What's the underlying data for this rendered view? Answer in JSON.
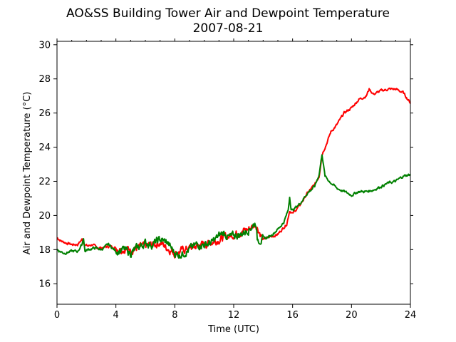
{
  "chart_data": {
    "type": "line",
    "title": "AO&SS Building Tower Air and Dewpoint Temperature",
    "subtitle": "2007-08-21",
    "xlabel": "Time (UTC)",
    "ylabel": "Air and Dewpoint Temperature (°C)",
    "xlim": [
      0,
      24
    ],
    "ylim": [
      14.8,
      30.2
    ],
    "xticks": [
      0,
      4,
      8,
      12,
      16,
      20,
      24
    ],
    "yticks": [
      16,
      18,
      20,
      22,
      24,
      26,
      28,
      30
    ],
    "grid": false,
    "legend": "none",
    "series": [
      {
        "color": "#ff0000",
        "x": [
          0,
          0.3,
          0.6,
          1.0,
          1.4,
          1.7,
          1.9,
          2.1,
          2.4,
          2.7,
          3.0,
          3.6,
          4.0,
          5.0,
          6.0,
          7.0,
          8.0,
          9.0,
          10.0,
          11.0,
          12.0,
          13.0,
          13.5,
          14.0,
          15.0,
          15.6,
          15.8,
          16.0,
          16.5,
          17.0,
          17.5,
          17.8,
          18.0,
          18.3,
          18.6,
          19.0,
          19.5,
          20.0,
          20.5,
          21.0,
          21.2,
          21.5,
          22.0,
          22.5,
          23.0,
          23.5,
          24.0
        ],
        "values": [
          18.7,
          18.5,
          18.4,
          18.3,
          18.3,
          18.6,
          18.3,
          18.2,
          18.3,
          18.1,
          18.1,
          18.2,
          18.1,
          18.0,
          18.2,
          18.4,
          17.8,
          18.1,
          18.3,
          18.6,
          18.9,
          19.2,
          19.5,
          18.6,
          18.9,
          19.5,
          20.3,
          20.1,
          20.6,
          21.3,
          21.8,
          22.3,
          23.6,
          24.2,
          24.9,
          25.3,
          26.0,
          26.3,
          26.8,
          27.0,
          27.4,
          27.1,
          27.3,
          27.4,
          27.4,
          27.2,
          26.6
        ]
      },
      {
        "color": "#008000",
        "x": [
          0,
          0.2,
          0.5,
          1.0,
          1.4,
          1.7,
          1.8,
          1.9,
          2.1,
          2.6,
          3.0,
          3.5,
          4.0,
          4.5,
          5.0,
          5.5,
          6.0,
          6.5,
          7.0,
          7.5,
          8.0,
          8.3,
          9.0,
          9.5,
          10.0,
          10.5,
          11.0,
          11.3,
          11.7,
          12.0,
          12.5,
          13.0,
          13.3,
          13.5,
          13.6,
          14.0,
          14.5,
          15.0,
          15.4,
          15.7,
          15.8,
          15.9,
          16.0,
          16.5,
          17.0,
          17.5,
          17.8,
          18.0,
          18.2,
          18.5,
          19.0,
          19.5,
          20.0,
          20.5,
          21.0,
          21.5,
          22.0,
          22.5,
          23.0,
          23.5,
          24.0
        ],
        "values": [
          18.0,
          17.9,
          17.8,
          17.9,
          17.9,
          18.3,
          18.7,
          17.9,
          18.0,
          18.1,
          18.0,
          18.3,
          17.9,
          18.0,
          17.8,
          18.1,
          18.4,
          18.3,
          18.6,
          18.4,
          17.8,
          17.7,
          18.0,
          18.3,
          18.3,
          18.4,
          18.8,
          19.0,
          18.7,
          18.8,
          18.9,
          19.2,
          19.4,
          19.6,
          18.6,
          18.6,
          18.8,
          19.2,
          19.6,
          20.3,
          21.1,
          20.4,
          20.3,
          20.7,
          21.3,
          21.7,
          22.4,
          23.6,
          22.3,
          22.0,
          21.6,
          21.4,
          21.2,
          21.4,
          21.4,
          21.5,
          21.7,
          21.9,
          22.0,
          22.3,
          22.4
        ]
      }
    ]
  }
}
